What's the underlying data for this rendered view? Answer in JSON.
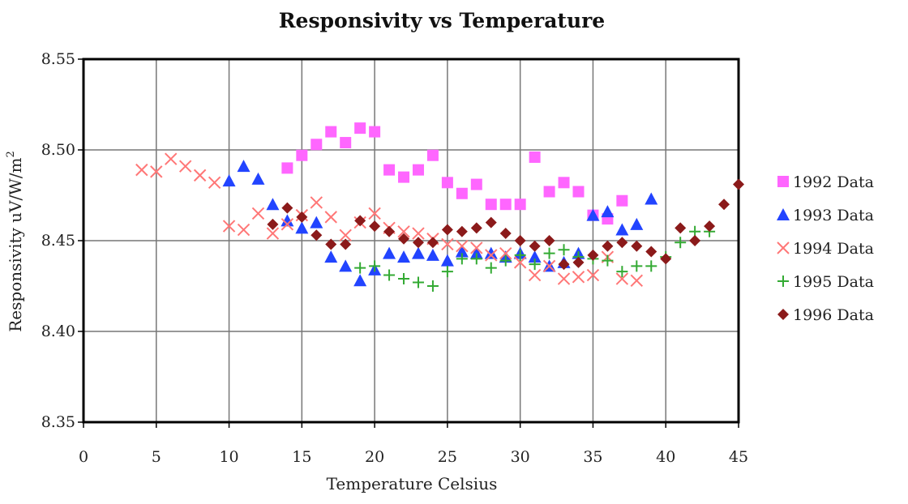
{
  "chart_data": {
    "type": "scatter",
    "title": "Responsivity vs Temperature",
    "xlabel": "Temperature Celsius",
    "ylabel": "Responsivity uV/W/m",
    "ylabel_superscript": "2",
    "xlim": [
      0,
      45
    ],
    "ylim": [
      8.35,
      8.55
    ],
    "x_ticks": [
      "0",
      "5",
      "10",
      "15",
      "20",
      "25",
      "30",
      "35",
      "40",
      "45"
    ],
    "y_ticks": [
      "8.35",
      "8.40",
      "8.45",
      "8.50",
      "8.55"
    ],
    "grid": true,
    "legend_position": "right",
    "series": [
      {
        "name": "1992 Data",
        "marker": "square",
        "color": "#ff66ff",
        "points": [
          [
            14,
            8.49
          ],
          [
            15,
            8.497
          ],
          [
            16,
            8.503
          ],
          [
            17,
            8.51
          ],
          [
            18,
            8.504
          ],
          [
            19,
            8.512
          ],
          [
            20,
            8.51
          ],
          [
            21,
            8.489
          ],
          [
            22,
            8.485
          ],
          [
            23,
            8.489
          ],
          [
            24,
            8.497
          ],
          [
            25,
            8.482
          ],
          [
            26,
            8.476
          ],
          [
            27,
            8.481
          ],
          [
            28,
            8.47
          ],
          [
            29,
            8.47
          ],
          [
            30,
            8.47
          ],
          [
            31,
            8.496
          ],
          [
            32,
            8.477
          ],
          [
            33,
            8.482
          ],
          [
            34,
            8.477
          ],
          [
            35,
            8.464
          ],
          [
            36,
            8.462
          ],
          [
            37,
            8.472
          ]
        ]
      },
      {
        "name": "1993 Data",
        "marker": "triangle",
        "color": "#2244ff",
        "points": [
          [
            10,
            8.483
          ],
          [
            11,
            8.491
          ],
          [
            12,
            8.484
          ],
          [
            13,
            8.47
          ],
          [
            14,
            8.461
          ],
          [
            15,
            8.457
          ],
          [
            16,
            8.46
          ],
          [
            17,
            8.441
          ],
          [
            18,
            8.436
          ],
          [
            19,
            8.428
          ],
          [
            20,
            8.434
          ],
          [
            21,
            8.443
          ],
          [
            22,
            8.441
          ],
          [
            23,
            8.443
          ],
          [
            24,
            8.442
          ],
          [
            25,
            8.439
          ],
          [
            26,
            8.444
          ],
          [
            27,
            8.443
          ],
          [
            28,
            8.443
          ],
          [
            29,
            8.441
          ],
          [
            30,
            8.443
          ],
          [
            31,
            8.441
          ],
          [
            32,
            8.436
          ],
          [
            33,
            8.438
          ],
          [
            34,
            8.443
          ],
          [
            35,
            8.464
          ],
          [
            36,
            8.466
          ],
          [
            37,
            8.456
          ],
          [
            38,
            8.459
          ],
          [
            39,
            8.473
          ]
        ]
      },
      {
        "name": "1994 Data",
        "marker": "x",
        "color": "#ff7777",
        "points": [
          [
            4,
            8.489
          ],
          [
            5,
            8.488
          ],
          [
            6,
            8.495
          ],
          [
            7,
            8.491
          ],
          [
            8,
            8.486
          ],
          [
            9,
            8.482
          ],
          [
            10,
            8.458
          ],
          [
            11,
            8.456
          ],
          [
            12,
            8.465
          ],
          [
            13,
            8.454
          ],
          [
            14,
            8.459
          ],
          [
            15,
            8.464
          ],
          [
            16,
            8.471
          ],
          [
            17,
            8.463
          ],
          [
            18,
            8.453
          ],
          [
            19,
            8.46
          ],
          [
            20,
            8.465
          ],
          [
            21,
            8.457
          ],
          [
            22,
            8.455
          ],
          [
            23,
            8.454
          ],
          [
            24,
            8.451
          ],
          [
            25,
            8.448
          ],
          [
            26,
            8.447
          ],
          [
            27,
            8.446
          ],
          [
            28,
            8.442
          ],
          [
            29,
            8.443
          ],
          [
            30,
            8.438
          ],
          [
            31,
            8.431
          ],
          [
            32,
            8.436
          ],
          [
            33,
            8.429
          ],
          [
            34,
            8.43
          ],
          [
            35,
            8.431
          ],
          [
            36,
            8.441
          ],
          [
            37,
            8.429
          ],
          [
            38,
            8.428
          ]
        ]
      },
      {
        "name": "1995 Data",
        "marker": "plus",
        "color": "#33aa33",
        "points": [
          [
            19,
            8.435
          ],
          [
            20,
            8.436
          ],
          [
            21,
            8.431
          ],
          [
            22,
            8.429
          ],
          [
            23,
            8.427
          ],
          [
            24,
            8.425
          ],
          [
            25,
            8.433
          ],
          [
            26,
            8.44
          ],
          [
            27,
            8.44
          ],
          [
            28,
            8.435
          ],
          [
            29,
            8.439
          ],
          [
            30,
            8.442
          ],
          [
            31,
            8.437
          ],
          [
            32,
            8.443
          ],
          [
            33,
            8.445
          ],
          [
            34,
            8.441
          ],
          [
            35,
            8.44
          ],
          [
            36,
            8.439
          ],
          [
            37,
            8.433
          ],
          [
            38,
            8.436
          ],
          [
            39,
            8.436
          ],
          [
            40,
            8.441
          ],
          [
            41,
            8.449
          ],
          [
            42,
            8.455
          ],
          [
            43,
            8.455
          ]
        ]
      },
      {
        "name": "1996 Data",
        "marker": "diamond",
        "color": "#8b1a1a",
        "points": [
          [
            13,
            8.459
          ],
          [
            14,
            8.468
          ],
          [
            15,
            8.463
          ],
          [
            16,
            8.453
          ],
          [
            17,
            8.448
          ],
          [
            18,
            8.448
          ],
          [
            19,
            8.461
          ],
          [
            20,
            8.458
          ],
          [
            21,
            8.455
          ],
          [
            22,
            8.451
          ],
          [
            23,
            8.449
          ],
          [
            24,
            8.449
          ],
          [
            25,
            8.456
          ],
          [
            26,
            8.455
          ],
          [
            27,
            8.457
          ],
          [
            28,
            8.46
          ],
          [
            29,
            8.454
          ],
          [
            30,
            8.45
          ],
          [
            31,
            8.447
          ],
          [
            32,
            8.45
          ],
          [
            33,
            8.437
          ],
          [
            34,
            8.438
          ],
          [
            35,
            8.442
          ],
          [
            36,
            8.447
          ],
          [
            37,
            8.449
          ],
          [
            38,
            8.447
          ],
          [
            39,
            8.444
          ],
          [
            40,
            8.44
          ],
          [
            41,
            8.457
          ],
          [
            42,
            8.45
          ],
          [
            43,
            8.458
          ],
          [
            44,
            8.47
          ],
          [
            45,
            8.481
          ]
        ]
      }
    ]
  }
}
